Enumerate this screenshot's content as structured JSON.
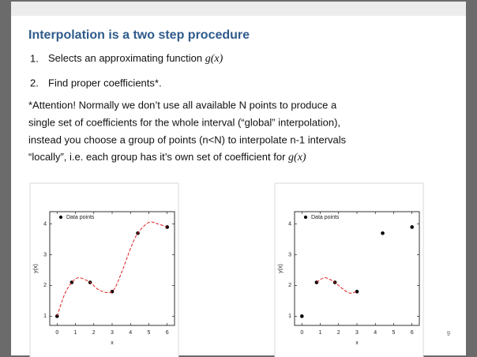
{
  "title": "Interpolation is a two step procedure",
  "list": [
    {
      "number": "1.",
      "text": "Selects an approximating function",
      "math": "g(x)"
    },
    {
      "number": "2.",
      "text": "Find proper coefficients*."
    }
  ],
  "paragraph": {
    "lines": [
      "*Attention! Normally we don’t use all available N points to produce a",
      "single set of coefficients  for the whole interval (“global” interpolation),",
      "instead you choose a group of points (n<N) to interpolate n-1 intervals",
      "“locally”, i.e. each group has it’s own set of coefficient for"
    ],
    "math": "g(x)"
  },
  "charts": [
    {
      "type": "scatter",
      "xlabel": "x",
      "ylabel": "y(x)",
      "xlim": [
        -0.4,
        6.4
      ],
      "ylim": [
        0.7,
        4.4
      ],
      "xticks": [
        0,
        1,
        2,
        3,
        4,
        5,
        6
      ],
      "yticks": [
        1,
        2,
        3,
        4
      ],
      "legend": "upper left",
      "series": [
        {
          "name": "Data points",
          "color": "#000000",
          "x": [
            0,
            0.8,
            1.8,
            3,
            4.4,
            6
          ],
          "values": [
            1,
            2.1,
            2.1,
            1.8,
            3.7,
            3.9
          ]
        },
        {
          "color": "#e02020",
          "style": "dashed",
          "x": [
            0,
            0.4,
            0.8,
            1.2,
            1.8,
            2.3,
            3,
            3.5,
            4,
            4.4,
            5,
            5.5,
            6
          ],
          "values": [
            1,
            1.7,
            2.1,
            2.25,
            2.1,
            1.85,
            1.8,
            2.4,
            3.2,
            3.7,
            4.05,
            4.0,
            3.9
          ]
        }
      ]
    },
    {
      "type": "scatter",
      "xlabel": "x",
      "ylabel": "y(x)",
      "xlim": [
        -0.4,
        6.4
      ],
      "ylim": [
        0.7,
        4.4
      ],
      "xticks": [
        0,
        1,
        2,
        3,
        4,
        5,
        6
      ],
      "yticks": [
        1,
        2,
        3,
        4
      ],
      "legend": "upper left",
      "series": [
        {
          "name": "Data points",
          "color": "#000000",
          "x": [
            0,
            0.8,
            1.8,
            3,
            4.4,
            6
          ],
          "values": [
            1,
            2.1,
            2.1,
            1.8,
            3.7,
            3.9
          ]
        },
        {
          "color": "#e02020",
          "style": "dashed",
          "x": [
            0.8,
            1.2,
            1.5,
            1.8,
            2.2,
            2.6,
            3
          ],
          "values": [
            2.1,
            2.25,
            2.2,
            2.1,
            1.9,
            1.75,
            1.8
          ]
        }
      ]
    }
  ],
  "page_number": "9"
}
